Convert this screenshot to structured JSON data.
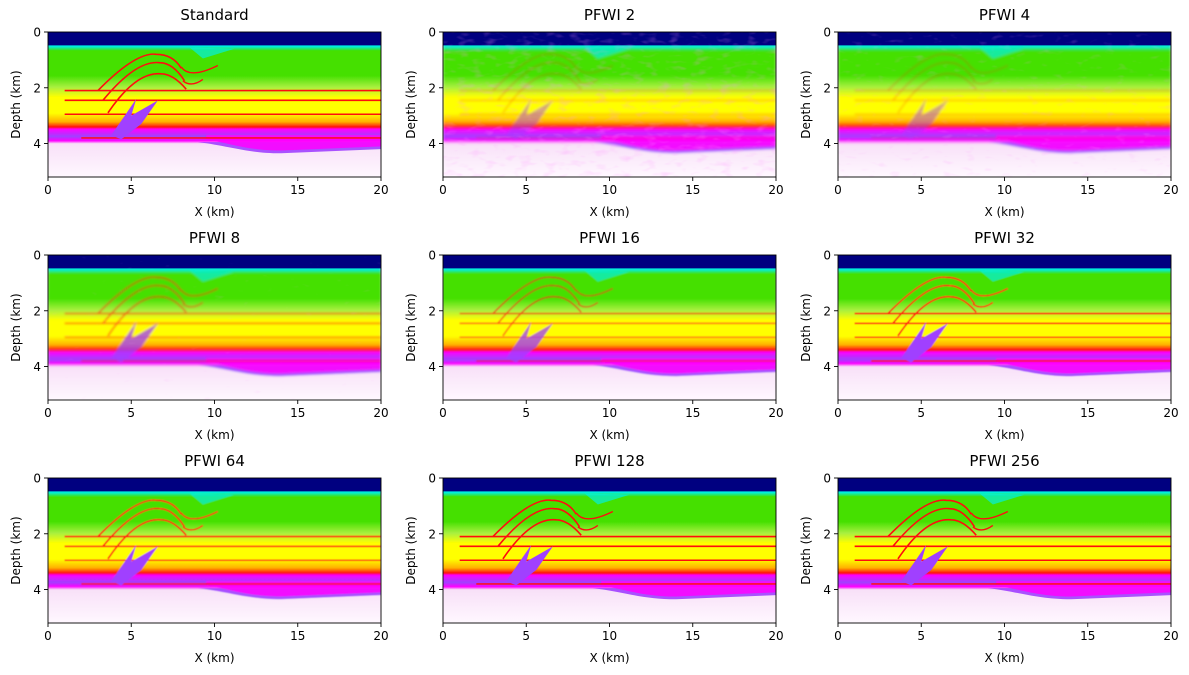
{
  "chart_data": [
    {
      "type": "heatmap",
      "title": "Standard",
      "xlabel": "X (km)",
      "ylabel": "Depth (km)",
      "xlim": [
        0,
        20
      ],
      "ylim": [
        5.2,
        0
      ],
      "xticks": [
        0,
        5,
        10,
        15,
        20
      ],
      "yticks": [
        0,
        2,
        4
      ],
      "quality": "sharp",
      "noise": 0.05
    },
    {
      "type": "heatmap",
      "title": "PFWI 2",
      "xlabel": "X (km)",
      "ylabel": "Depth (km)",
      "xlim": [
        0,
        20
      ],
      "ylim": [
        5.2,
        0
      ],
      "xticks": [
        0,
        5,
        10,
        15,
        20
      ],
      "yticks": [
        0,
        2,
        4
      ],
      "quality": "very-blurry",
      "noise": 0.35
    },
    {
      "type": "heatmap",
      "title": "PFWI 4",
      "xlabel": "X (km)",
      "ylabel": "Depth (km)",
      "xlim": [
        0,
        20
      ],
      "ylim": [
        5.2,
        0
      ],
      "xticks": [
        0,
        5,
        10,
        15,
        20
      ],
      "yticks": [
        0,
        2,
        4
      ],
      "quality": "blurry",
      "noise": 0.3
    },
    {
      "type": "heatmap",
      "title": "PFWI 8",
      "xlabel": "X (km)",
      "ylabel": "Depth (km)",
      "xlim": [
        0,
        20
      ],
      "ylim": [
        5.2,
        0
      ],
      "xticks": [
        0,
        5,
        10,
        15,
        20
      ],
      "yticks": [
        0,
        2,
        4
      ],
      "quality": "medium",
      "noise": 0.25
    },
    {
      "type": "heatmap",
      "title": "PFWI 16",
      "xlabel": "X (km)",
      "ylabel": "Depth (km)",
      "xlim": [
        0,
        20
      ],
      "ylim": [
        5.2,
        0
      ],
      "xticks": [
        0,
        5,
        10,
        15,
        20
      ],
      "yticks": [
        0,
        2,
        4
      ],
      "quality": "medium-sharp",
      "noise": 0.2
    },
    {
      "type": "heatmap",
      "title": "PFWI 32",
      "xlabel": "X (km)",
      "ylabel": "Depth (km)",
      "xlim": [
        0,
        20
      ],
      "ylim": [
        5.2,
        0
      ],
      "xticks": [
        0,
        5,
        10,
        15,
        20
      ],
      "yticks": [
        0,
        2,
        4
      ],
      "quality": "sharp",
      "noise": 0.15
    },
    {
      "type": "heatmap",
      "title": "PFWI 64",
      "xlabel": "X (km)",
      "ylabel": "Depth (km)",
      "xlim": [
        0,
        20
      ],
      "ylim": [
        5.2,
        0
      ],
      "xticks": [
        0,
        5,
        10,
        15,
        20
      ],
      "yticks": [
        0,
        2,
        4
      ],
      "quality": "sharp",
      "noise": 0.1
    },
    {
      "type": "heatmap",
      "title": "PFWI 128",
      "xlabel": "X (km)",
      "ylabel": "Depth (km)",
      "xlim": [
        0,
        20
      ],
      "ylim": [
        5.2,
        0
      ],
      "xticks": [
        0,
        5,
        10,
        15,
        20
      ],
      "yticks": [
        0,
        2,
        4
      ],
      "quality": "sharp",
      "noise": 0.07
    },
    {
      "type": "heatmap",
      "title": "PFWI 256",
      "xlabel": "X (km)",
      "ylabel": "Depth (km)",
      "xlim": [
        0,
        20
      ],
      "ylim": [
        5.2,
        0
      ],
      "xticks": [
        0,
        5,
        10,
        15,
        20
      ],
      "yticks": [
        0,
        2,
        4
      ],
      "quality": "sharp",
      "noise": 0.06
    }
  ],
  "colormap": {
    "water": "#000080",
    "cyan": "#00f0e0",
    "green": "#44e000",
    "light_green": "#a8f040",
    "yellow": "#ffff00",
    "orange": "#ffb000",
    "red": "#ff1010",
    "magenta": "#ff00ff",
    "purple": "#a040ff",
    "pale": "#f8e0f8",
    "white": "#fff8ff"
  }
}
